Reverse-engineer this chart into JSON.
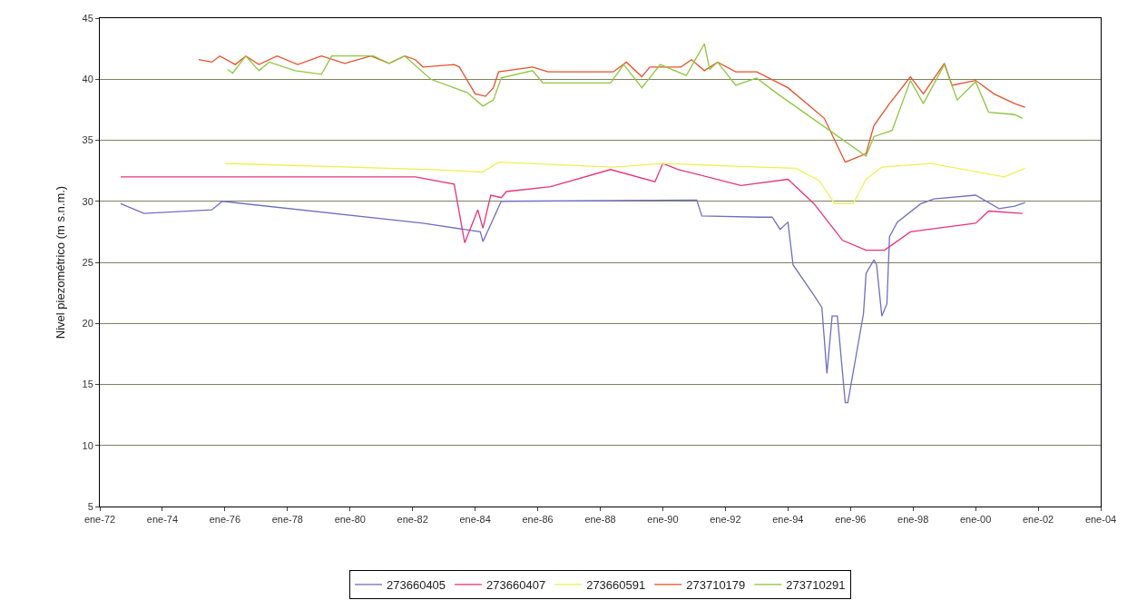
{
  "chart_data": {
    "type": "line",
    "ylabel": "Nivel piezométrico (m s.n.m.)",
    "xlim": [
      "1972-01",
      "2004-01"
    ],
    "xticks": [
      {
        "value": "1972-01",
        "label": "ene-72"
      },
      {
        "value": "1974-01",
        "label": "ene-74"
      },
      {
        "value": "1976-01",
        "label": "ene-76"
      },
      {
        "value": "1978-01",
        "label": "ene-78"
      },
      {
        "value": "1980-01",
        "label": "ene-80"
      },
      {
        "value": "1982-01",
        "label": "ene-82"
      },
      {
        "value": "1984-01",
        "label": "ene-84"
      },
      {
        "value": "1986-01",
        "label": "ene-86"
      },
      {
        "value": "1988-01",
        "label": "ene-88"
      },
      {
        "value": "1990-01",
        "label": "ene-90"
      },
      {
        "value": "1992-01",
        "label": "ene-92"
      },
      {
        "value": "1994-01",
        "label": "ene-94"
      },
      {
        "value": "1996-01",
        "label": "ene-96"
      },
      {
        "value": "1998-01",
        "label": "ene-98"
      },
      {
        "value": "2000-01",
        "label": "ene-00"
      },
      {
        "value": "2002-01",
        "label": "ene-02"
      },
      {
        "value": "2004-01",
        "label": "ene-04"
      }
    ],
    "ylim": [
      5,
      45
    ],
    "yticks": [
      5,
      10,
      15,
      20,
      25,
      30,
      35,
      40,
      45
    ],
    "grid": "y",
    "legend": "bottom",
    "marker": "none",
    "line_style": "solid",
    "series": [
      {
        "name": "273660405",
        "color": "#6f6fc0",
        "x": [
          "1972-09",
          "1973-06",
          "1975-08",
          "1975-12",
          "1982-05",
          "1984-03",
          "1984-04",
          "1984-11",
          "1991-02",
          "1991-04",
          "1993-02",
          "1993-07",
          "1993-10",
          "1994-01",
          "1994-03",
          "1994-11",
          "1995-02",
          "1995-04",
          "1995-06",
          "1995-08",
          "1995-11",
          "1995-12",
          "1996-06",
          "1996-07",
          "1996-10",
          "1996-11",
          "1997-01",
          "1997-03",
          "1997-04",
          "1997-07",
          "1998-04",
          "1998-09",
          "2000-01",
          "2000-10",
          "2001-04",
          "2001-08"
        ],
        "values": [
          29.8,
          29.0,
          29.3,
          30.0,
          28.2,
          27.5,
          26.7,
          30.0,
          30.1,
          28.8,
          28.7,
          28.7,
          27.7,
          28.3,
          24.8,
          22.3,
          21.3,
          15.9,
          20.6,
          20.6,
          13.5,
          13.5,
          20.8,
          24.1,
          25.2,
          24.8,
          20.6,
          21.6,
          27.1,
          28.3,
          29.8,
          30.2,
          30.5,
          29.4,
          29.6,
          29.9
        ]
      },
      {
        "name": "273660407",
        "color": "#e8337a",
        "x": [
          "1972-09",
          "1982-02",
          "1983-05",
          "1983-09",
          "1984-02",
          "1984-04",
          "1984-07",
          "1984-11",
          "1985-01",
          "1986-06",
          "1988-05",
          "1989-10",
          "1990-01",
          "1990-07",
          "1992-07",
          "1994-01",
          "1994-11",
          "1995-10",
          "1996-07",
          "1997-02",
          "1997-12",
          "2000-01",
          "2000-06",
          "2001-07"
        ],
        "values": [
          32.0,
          32.0,
          31.4,
          26.6,
          29.3,
          27.8,
          30.5,
          30.3,
          30.8,
          31.2,
          32.6,
          31.6,
          33.1,
          32.6,
          31.3,
          31.8,
          29.8,
          26.8,
          26.0,
          26.0,
          27.5,
          28.2,
          29.2,
          29.0
        ]
      },
      {
        "name": "273660591",
        "color": "#f0f050",
        "x": [
          "1976-01",
          "1982-09",
          "1984-04",
          "1984-10",
          "1988-06",
          "1990-01",
          "1993-02",
          "1994-04",
          "1995-01",
          "1995-07",
          "1996-02",
          "1996-07",
          "1997-01",
          "1998-08",
          "2000-12",
          "2001-08"
        ],
        "values": [
          33.1,
          32.6,
          32.4,
          33.2,
          32.8,
          33.1,
          32.8,
          32.7,
          31.7,
          29.8,
          29.8,
          31.8,
          32.8,
          33.1,
          32.0,
          32.7
        ]
      },
      {
        "name": "273710179",
        "color": "#e8502a",
        "x": [
          "1975-03",
          "1975-08",
          "1975-11",
          "1976-05",
          "1976-09",
          "1977-02",
          "1977-09",
          "1978-05",
          "1979-02",
          "1979-11",
          "1980-09",
          "1981-04",
          "1981-10",
          "1982-02",
          "1982-05",
          "1983-05",
          "1983-07",
          "1984-01",
          "1984-05",
          "1984-08",
          "1984-10",
          "1985-11",
          "1986-05",
          "1988-06",
          "1988-11",
          "1989-05",
          "1989-08",
          "1990-08",
          "1990-12",
          "1991-05",
          "1991-10",
          "1992-05",
          "1993-01",
          "1994-01",
          "1995-03",
          "1995-11",
          "1996-07",
          "1996-10",
          "1997-04",
          "1997-12",
          "1998-05",
          "1999-01",
          "1999-04",
          "2000-01",
          "2000-08",
          "2001-04",
          "2001-08"
        ],
        "values": [
          41.6,
          41.4,
          41.9,
          41.2,
          41.9,
          41.2,
          41.9,
          41.2,
          41.9,
          41.3,
          41.9,
          41.3,
          41.9,
          41.6,
          41.0,
          41.2,
          41.0,
          38.8,
          38.6,
          39.3,
          40.6,
          41.0,
          40.6,
          40.6,
          41.4,
          40.2,
          41.0,
          41.0,
          41.6,
          40.7,
          41.4,
          40.6,
          40.6,
          39.3,
          36.8,
          33.2,
          33.9,
          36.2,
          38.0,
          40.2,
          38.8,
          41.3,
          39.5,
          39.9,
          38.8,
          38.0,
          37.7
        ]
      },
      {
        "name": "273710291",
        "color": "#8ec63f",
        "x": [
          "1976-02",
          "1976-04",
          "1976-09",
          "1977-02",
          "1977-06",
          "1978-04",
          "1979-02",
          "1979-06",
          "1980-10",
          "1981-04",
          "1981-10",
          "1982-08",
          "1983-10",
          "1984-04",
          "1984-08",
          "1984-11",
          "1985-11",
          "1986-03",
          "1988-05",
          "1988-10",
          "1989-05",
          "1989-12",
          "1990-10",
          "1991-05",
          "1991-07",
          "1991-10",
          "1992-05",
          "1993-01",
          "1993-09",
          "1996-07",
          "1996-10",
          "1997-05",
          "1997-12",
          "1998-05",
          "1999-01",
          "1999-06",
          "2000-01",
          "2000-06",
          "2001-04",
          "2001-07"
        ],
        "values": [
          40.8,
          40.5,
          41.9,
          40.7,
          41.4,
          40.7,
          40.4,
          41.9,
          41.9,
          41.3,
          41.9,
          40.0,
          38.9,
          37.8,
          38.3,
          40.1,
          40.7,
          39.7,
          39.7,
          41.2,
          39.3,
          41.2,
          40.3,
          42.9,
          40.8,
          41.4,
          39.5,
          40.1,
          38.8,
          33.7,
          35.3,
          35.8,
          39.9,
          38.0,
          41.2,
          38.3,
          39.8,
          37.3,
          37.1,
          36.8
        ]
      }
    ]
  }
}
